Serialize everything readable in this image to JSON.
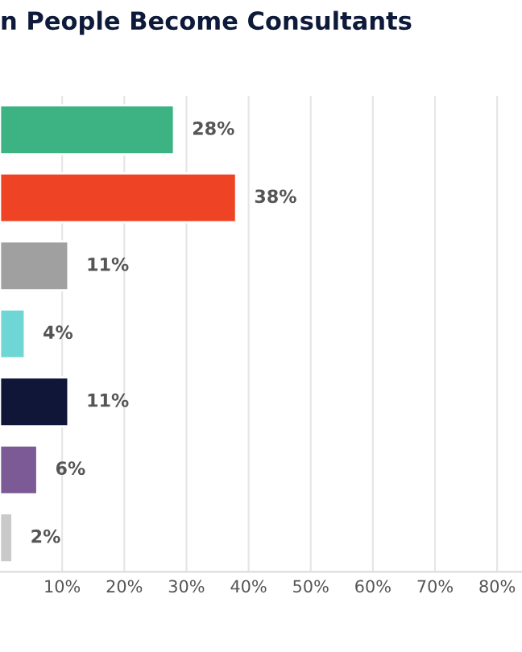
{
  "chart_data": {
    "type": "bar",
    "orientation": "horizontal",
    "title": "n People Become Consultants",
    "categories": [
      null,
      null,
      null,
      null,
      null,
      null,
      null
    ],
    "values": [
      28,
      38,
      11,
      4,
      11,
      6,
      2
    ],
    "value_labels": [
      "28%",
      "38%",
      "11%",
      "4%",
      "11%",
      "6%",
      "2%"
    ],
    "colors": [
      "#3db384",
      "#ee4324",
      "#a0a0a0",
      "#6fd6d6",
      "#101638",
      "#7b5a96",
      "#c9c9c9"
    ],
    "xlim": [
      0,
      84
    ],
    "xticks": [
      {
        "value": 10,
        "label": "10%"
      },
      {
        "value": 20,
        "label": "20%"
      },
      {
        "value": 30,
        "label": "30%"
      },
      {
        "value": 40,
        "label": "40%"
      },
      {
        "value": 50,
        "label": "50%"
      },
      {
        "value": 60,
        "label": "60%"
      },
      {
        "value": 70,
        "label": "70%"
      },
      {
        "value": 80,
        "label": "80%"
      }
    ],
    "grid": "x",
    "tick_labels": "x"
  }
}
